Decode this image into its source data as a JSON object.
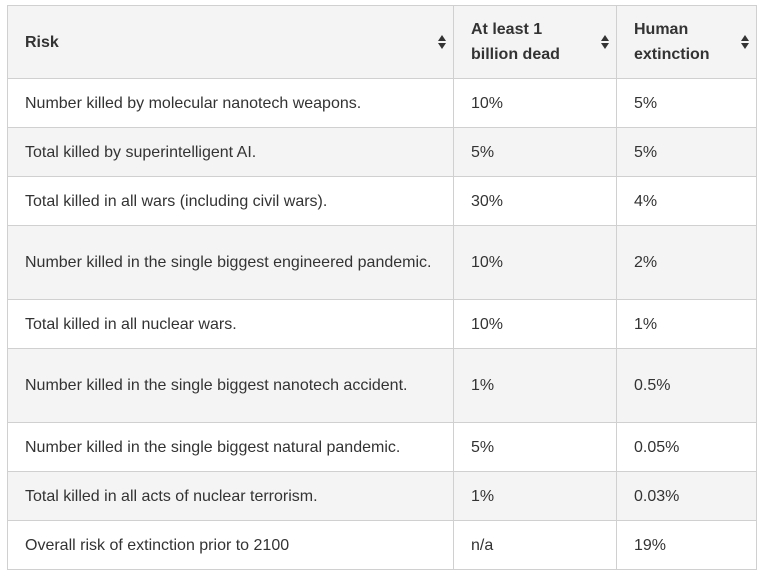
{
  "table": {
    "headers": [
      {
        "label": "Risk",
        "sort_icon": "sort-icon"
      },
      {
        "label": "At least 1 billion dead",
        "sort_icon": "sort-icon"
      },
      {
        "label": "Human extinction",
        "sort_icon": "sort-icon"
      }
    ],
    "rows": [
      {
        "risk": "Number killed by molecular nanotech weapons.",
        "billion": "10%",
        "extinction": "5%"
      },
      {
        "risk": "Total killed by superintelligent AI.",
        "billion": "5%",
        "extinction": "5%"
      },
      {
        "risk": "Total killed in all wars (including civil wars).",
        "billion": "30%",
        "extinction": "4%"
      },
      {
        "risk": "Number killed in the single biggest engineered pandemic.",
        "billion": "10%",
        "extinction": "2%"
      },
      {
        "risk": "Total killed in all nuclear wars.",
        "billion": "10%",
        "extinction": "1%"
      },
      {
        "risk": "Number killed in the single biggest nanotech accident.",
        "billion": "1%",
        "extinction": "0.5%"
      },
      {
        "risk": "Number killed in the single biggest natural pandemic.",
        "billion": "5%",
        "extinction": "0.05%"
      },
      {
        "risk": "Total killed in all acts of nuclear terrorism.",
        "billion": "1%",
        "extinction": "0.03%"
      },
      {
        "risk": "Overall risk of extinction prior to 2100",
        "billion": "n/a",
        "extinction": "19%"
      }
    ]
  },
  "colors": {
    "header_bg": "#f4f4f4",
    "row_alt_bg": "#f4f4f4",
    "border": "#d0d0d0",
    "text": "#333333"
  }
}
